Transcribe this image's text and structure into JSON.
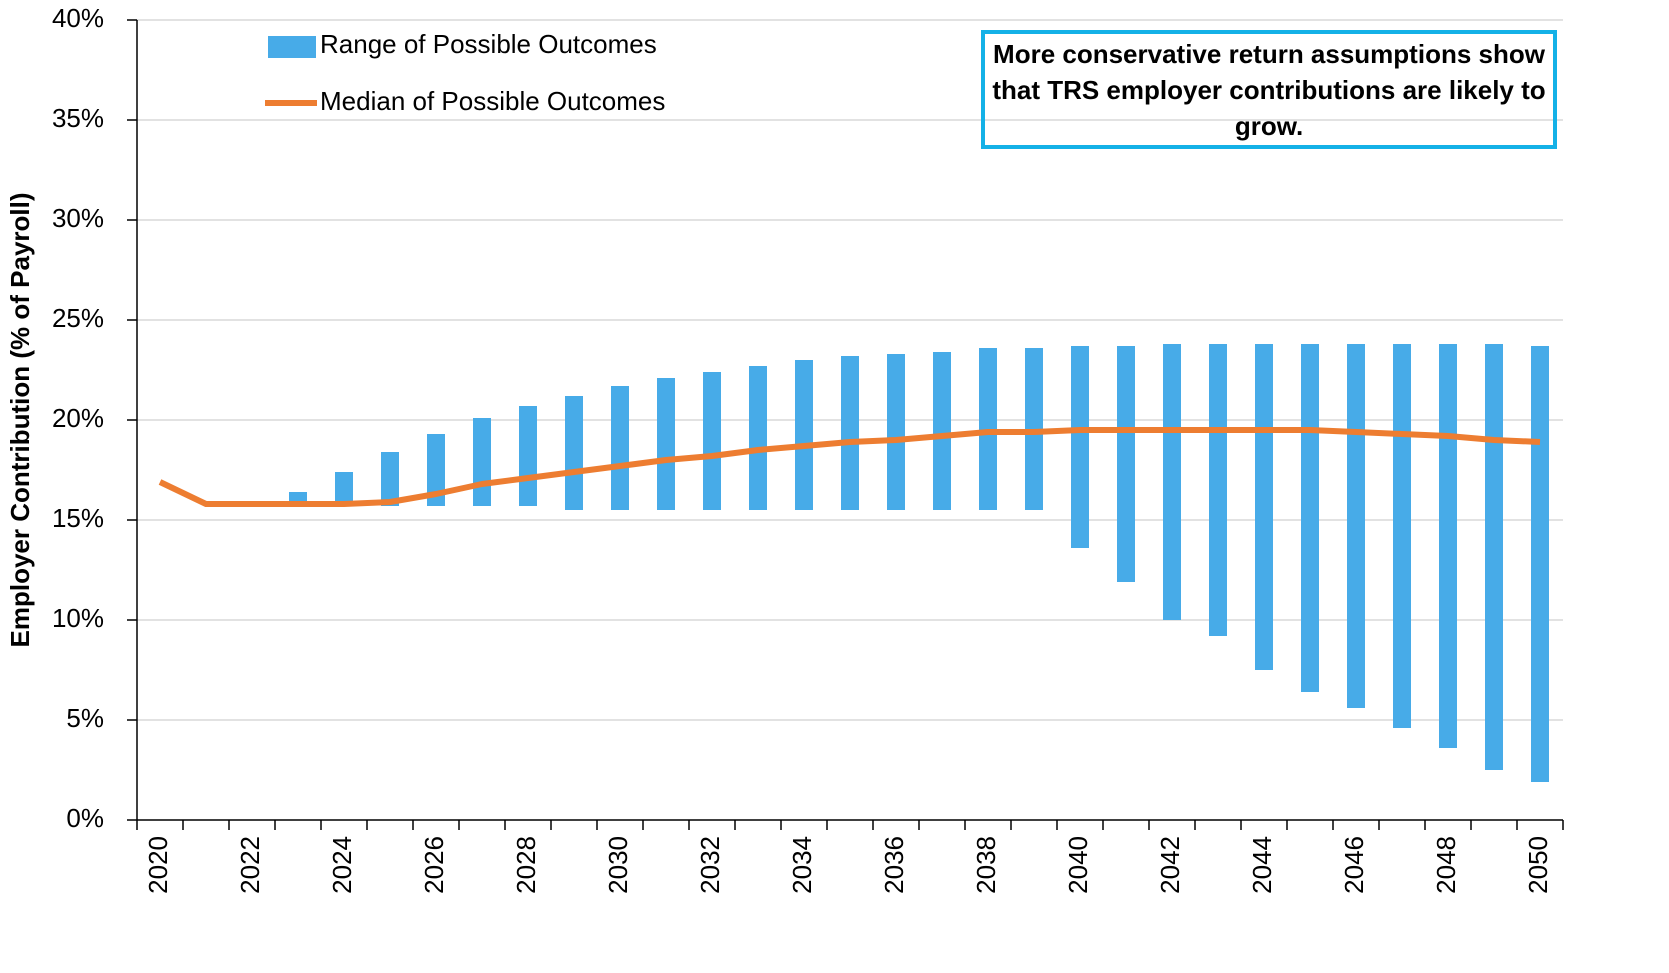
{
  "chart_data": {
    "type": "range-bar-line",
    "y_label": "Employer Contribution (% of Payroll)",
    "annotation": "More conservative return assumptions show that TRS employer contributions are likely to grow.",
    "categories": [
      "2020",
      null,
      "2022",
      null,
      "2024",
      null,
      "2026",
      null,
      "2028",
      null,
      "2030",
      null,
      "2032",
      null,
      "2034",
      null,
      "2036",
      null,
      "2038",
      null,
      "2040",
      null,
      "2042",
      null,
      "2044",
      null,
      "2046",
      null,
      "2048",
      null,
      "2050"
    ],
    "series": [
      {
        "name": "Range of Possible Outcomes",
        "color": "#47abe8",
        "low": [
          null,
          null,
          null,
          15.8,
          15.8,
          15.7,
          15.7,
          15.7,
          15.7,
          15.5,
          15.5,
          15.5,
          15.5,
          15.5,
          15.5,
          15.5,
          15.5,
          15.5,
          15.5,
          15.5,
          13.6,
          11.9,
          10.0,
          9.2,
          7.5,
          6.4,
          5.6,
          4.6,
          3.6,
          2.5,
          1.9
        ],
        "high": [
          null,
          null,
          null,
          16.4,
          17.4,
          18.4,
          19.3,
          20.1,
          20.7,
          21.2,
          21.7,
          22.1,
          22.4,
          22.7,
          23.0,
          23.2,
          23.3,
          23.4,
          23.6,
          23.6,
          23.7,
          23.7,
          23.8,
          23.8,
          23.8,
          23.8,
          23.8,
          23.8,
          23.8,
          23.8,
          23.7
        ]
      },
      {
        "name": "Median of Possible Outcomes",
        "color": "#ed7d31",
        "values": [
          16.9,
          15.8,
          15.8,
          15.8,
          15.8,
          15.9,
          16.3,
          16.8,
          17.1,
          17.4,
          17.7,
          18.0,
          18.2,
          18.5,
          18.7,
          18.9,
          19.0,
          19.2,
          19.4,
          19.4,
          19.5,
          19.5,
          19.5,
          19.5,
          19.5,
          19.5,
          19.4,
          19.3,
          19.2,
          19.0,
          18.9
        ]
      }
    ],
    "ylim": [
      0,
      40
    ],
    "yticks": [
      {
        "value": 0,
        "label": "0%"
      },
      {
        "value": 5,
        "label": "5%"
      },
      {
        "value": 10,
        "label": "10%"
      },
      {
        "value": 15,
        "label": "15%"
      },
      {
        "value": 20,
        "label": "20%"
      },
      {
        "value": 25,
        "label": "25%"
      },
      {
        "value": 30,
        "label": "30%"
      },
      {
        "value": 35,
        "label": "35%"
      },
      {
        "value": 40,
        "label": "40%"
      }
    ],
    "grid": true
  }
}
